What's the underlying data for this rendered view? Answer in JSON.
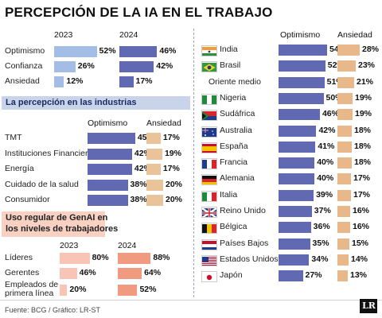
{
  "title": "PERCEPCIÓN DE LA IA EN EL TRABAJO",
  "colors": {
    "bar_2023": "#a3bde4",
    "bar_2024": "#6169b3",
    "bar_ind_opt": "#6169b3",
    "bar_ind_ans": "#e9c39a",
    "bar_genai_2023": "#f7c4b6",
    "bar_genai_2024": "#f09a7f",
    "bar_country_opt": "#6169b3",
    "bar_country_ans": "#e9b88a"
  },
  "chart_data": [
    {
      "type": "bar",
      "categories": [
        "Optimismo",
        "Confianza",
        "Ansiedad"
      ],
      "series": [
        {
          "name": "2023",
          "values": [
            52,
            26,
            12
          ]
        },
        {
          "name": "2024",
          "values": [
            46,
            42,
            17
          ]
        }
      ],
      "value_labels": {
        "2023": [
          "52%",
          "26%",
          "12%"
        ],
        "2024": [
          "46%",
          "42%",
          "17%"
        ]
      }
    },
    {
      "type": "bar",
      "title": "La percepción en las industrias",
      "categories": [
        "TMT",
        "Instituciones Financieras",
        "Energía",
        "Cuidado de la salud",
        "Consumidor"
      ],
      "series": [
        {
          "name": "Optimismo",
          "values": [
            45,
            42,
            42,
            38,
            38
          ]
        },
        {
          "name": "Ansiedad",
          "values": [
            17,
            19,
            17,
            20,
            20
          ]
        }
      ],
      "value_labels": {
        "Optimismo": [
          "45%",
          "42%",
          "42%",
          "38%",
          "38%"
        ],
        "Ansiedad": [
          "17%",
          "19%",
          "17%",
          "20%",
          "20%"
        ]
      }
    },
    {
      "type": "bar",
      "title": [
        "Uso regular de GenAI en",
        "los niveles de trabajadores"
      ],
      "categories": [
        "Líderes",
        "Gerentes",
        "Empleados de primera línea"
      ],
      "category_lines": [
        [
          "Líderes"
        ],
        [
          "Gerentes"
        ],
        [
          "Empleados de",
          "primera línea"
        ]
      ],
      "series": [
        {
          "name": "2023",
          "values": [
            80,
            46,
            20
          ]
        },
        {
          "name": "2024",
          "values": [
            88,
            64,
            52
          ]
        }
      ],
      "value_labels": {
        "2023": [
          "80%",
          "46%",
          "20%"
        ],
        "2024": [
          "88%",
          "64%",
          "52%"
        ]
      }
    },
    {
      "type": "bar",
      "categories": [
        "India",
        "Brasil",
        "Oriente medio",
        "Nigeria",
        "Sudáfrica",
        "Australia",
        "España",
        "Francia",
        "Alemania",
        "Italia",
        "Reino Unido",
        "Bélgica",
        "Países Bajos",
        "Estados Unidos",
        "Japón"
      ],
      "flags": [
        "india-flag",
        "brazil-flag",
        "",
        "nigeria-flag",
        "south-africa-flag",
        "australia-flag",
        "spain-flag",
        "france-flag",
        "germany-flag",
        "italy-flag",
        "uk-flag",
        "belgium-flag",
        "netherlands-flag",
        "usa-flag",
        "japan-flag"
      ],
      "series": [
        {
          "name": "Optimismo",
          "values": [
            54,
            52,
            51,
            50,
            46,
            42,
            41,
            40,
            40,
            39,
            37,
            36,
            35,
            34,
            27
          ]
        },
        {
          "name": "Ansiedad",
          "values": [
            28,
            23,
            21,
            19,
            19,
            18,
            18,
            18,
            17,
            17,
            16,
            16,
            15,
            14,
            13
          ]
        }
      ],
      "value_labels": {
        "Optimismo": [
          "54%",
          "52%",
          "51%",
          "50%",
          "46%",
          "42%",
          "41%",
          "40%",
          "40%",
          "39%",
          "37%",
          "36%",
          "35%",
          "34%",
          "27%"
        ],
        "Ansiedad": [
          "28%",
          "23%",
          "21%",
          "19%",
          "19%",
          "18%",
          "18%",
          "18%",
          "17%",
          "17%",
          "16%",
          "16%",
          "15%",
          "14%",
          "13%"
        ]
      }
    }
  ],
  "source": "Fuente: BCG / Gráfico: LR-ST",
  "logo_text": "LR"
}
